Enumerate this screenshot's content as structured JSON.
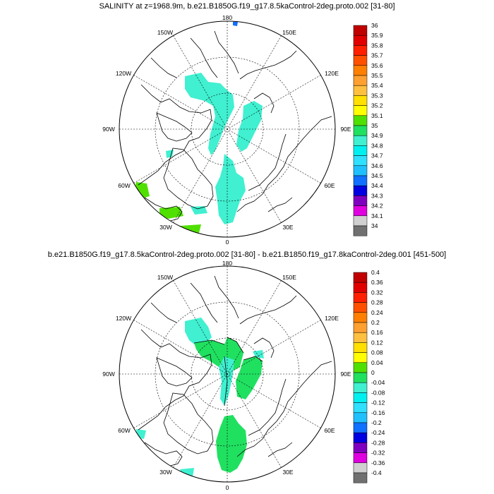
{
  "panel_top": {
    "title": "SALINITY at z=1968.9m, b.e21.B1850G.f19_g17.8.5kaControl-2deg.proto.002 [31-80]",
    "lon_labels": [
      "180",
      "150E",
      "120E",
      "90E",
      "60E",
      "30E",
      "0",
      "30W",
      "60W",
      "90W",
      "120W",
      "150W"
    ],
    "colorbar": {
      "labels": [
        "36",
        "35.9",
        "35.8",
        "35.7",
        "35.6",
        "35.5",
        "35.4",
        "35.3",
        "35.2",
        "35.1",
        "35",
        "34.9",
        "34.8",
        "34.7",
        "34.6",
        "34.5",
        "34.4",
        "34.3",
        "34.2",
        "34.1",
        "34"
      ],
      "colors": [
        "#c00000",
        "#e00000",
        "#ff2000",
        "#ff5000",
        "#ff8000",
        "#ffa030",
        "#ffc040",
        "#ffe000",
        "#ffff00",
        "#50e000",
        "#20e060",
        "#40f0d0",
        "#00f0f0",
        "#30e0ff",
        "#20c0ff",
        "#1070ff",
        "#0000e0",
        "#8000c0",
        "#e000e0",
        "#d0d0d0",
        "#707070"
      ]
    }
  },
  "panel_bottom": {
    "title": "b.e21.B1850G.f19_g17.8.5kaControl-2deg.proto.002 [31-80] - b.e21.B1850.f19_g17.8kaControl-2deg.001 [451-500]",
    "lon_labels": [
      "180",
      "150E",
      "120E",
      "90E",
      "60E",
      "30E",
      "0",
      "30W",
      "60W",
      "90W",
      "120W",
      "150W"
    ],
    "colorbar": {
      "labels": [
        "0.4",
        "0.36",
        "0.32",
        "0.28",
        "0.24",
        "0.2",
        "0.16",
        "0.12",
        "0.08",
        "0.04",
        "0",
        "-0.04",
        "-0.08",
        "-0.12",
        "-0.16",
        "-0.2",
        "-0.24",
        "-0.28",
        "-0.32",
        "-0.36",
        "-0.4"
      ],
      "colors": [
        "#c00000",
        "#e00000",
        "#ff2000",
        "#ff5000",
        "#ff8000",
        "#ffa030",
        "#ffc040",
        "#ffe000",
        "#ffff00",
        "#50e000",
        "#20e060",
        "#40f0d0",
        "#00f0f0",
        "#30e0ff",
        "#20c0ff",
        "#1070ff",
        "#0000e0",
        "#8000c0",
        "#e000e0",
        "#d0d0d0",
        "#707070"
      ]
    }
  },
  "colors": {
    "field_top": "#40f0d0",
    "field_top_alt": "#50e000",
    "field_bottom": "#20e060",
    "field_bottom_alt": "#40f0d0",
    "highlight_blue": "#1070ff"
  }
}
